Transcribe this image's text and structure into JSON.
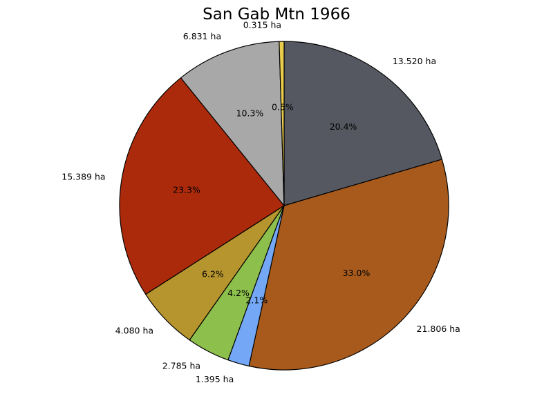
{
  "chart_data": {
    "type": "pie",
    "title": "San Gab Mtn 1966",
    "start_angle_deg": 90,
    "direction": "clockwise",
    "slices": [
      {
        "label": "13.520 ha",
        "value": 13.52,
        "percent_label": "20.4%",
        "color": "#555860"
      },
      {
        "label": "21.806 ha",
        "value": 21.806,
        "percent_label": "33.0%",
        "color": "#a75a1c"
      },
      {
        "label": "1.395 ha",
        "value": 1.395,
        "percent_label": "2.1%",
        "color": "#74a8f6"
      },
      {
        "label": "2.785 ha",
        "value": 2.785,
        "percent_label": "4.2%",
        "color": "#8cbf4c"
      },
      {
        "label": "4.080 ha",
        "value": 4.08,
        "percent_label": "6.2%",
        "color": "#b6942e"
      },
      {
        "label": "15.389 ha",
        "value": 15.389,
        "percent_label": "23.3%",
        "color": "#ab2a0b"
      },
      {
        "label": "6.831 ha",
        "value": 6.831,
        "percent_label": "10.3%",
        "color": "#a7a8a7"
      },
      {
        "label": "0.315 ha",
        "value": 0.315,
        "percent_label": "0.5%",
        "color": "#e9cc4c"
      }
    ]
  }
}
